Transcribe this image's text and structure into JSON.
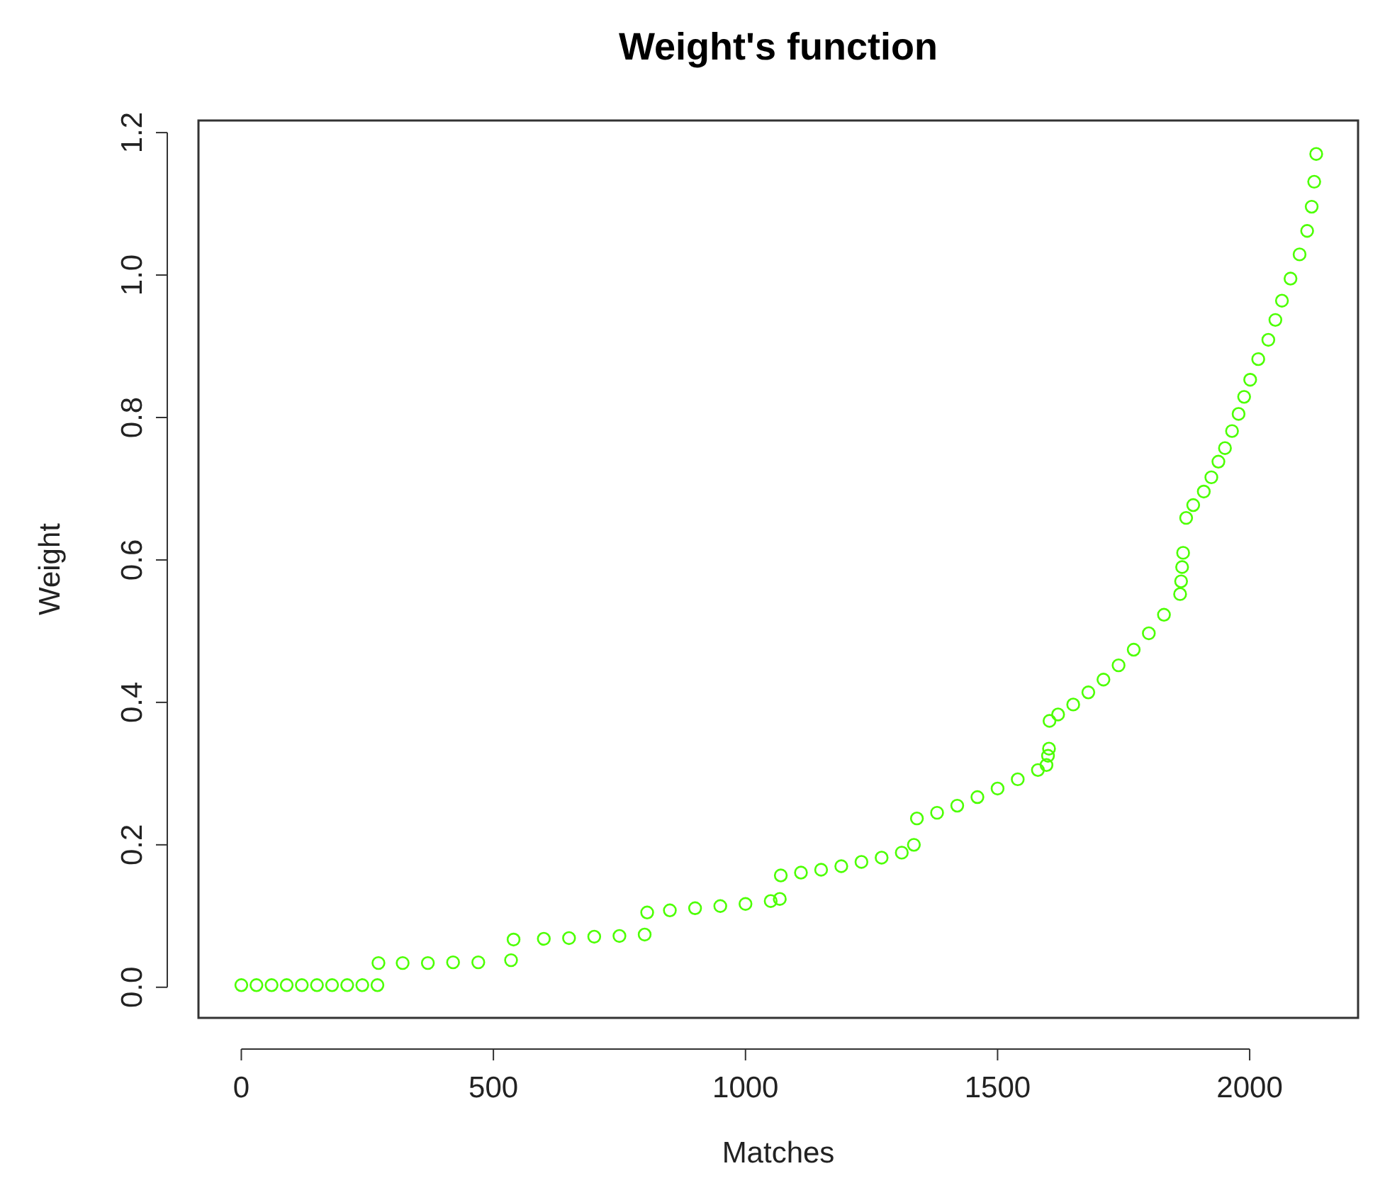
{
  "chart_data": {
    "type": "scatter",
    "title": "Weight's function",
    "xlabel": "Matches",
    "ylabel": "Weight",
    "marker": "circle",
    "grid": false,
    "xlim": [
      -85,
      2215
    ],
    "ylim": [
      -0.043,
      1.217
    ],
    "xticks": [
      0,
      500,
      1000,
      1500,
      2000
    ],
    "yticks": [
      {
        "value": 0,
        "label": "0.0"
      },
      {
        "value": 0.2,
        "label": "0.2"
      },
      {
        "value": 0.4,
        "label": "0.4"
      },
      {
        "value": 0.6,
        "label": "0.6"
      },
      {
        "value": 0.8,
        "label": "0.8"
      },
      {
        "value": 1,
        "label": "1.0"
      },
      {
        "value": 1.2,
        "label": "1.2"
      }
    ],
    "series": [
      {
        "color": "#4cff00",
        "x": [
          0,
          30,
          60,
          90,
          120,
          150,
          180,
          210,
          240,
          270,
          272,
          320,
          370,
          420,
          470,
          535,
          540,
          600,
          650,
          700,
          750,
          800,
          805,
          850,
          900,
          950,
          1000,
          1050,
          1068,
          1070,
          1110,
          1150,
          1190,
          1230,
          1270,
          1310,
          1334,
          1340,
          1380,
          1420,
          1460,
          1500,
          1540,
          1580,
          1597,
          1600,
          1602,
          1603,
          1620,
          1650,
          1680,
          1710,
          1740,
          1770,
          1800,
          1830,
          1862,
          1864,
          1866,
          1868,
          1874,
          1888,
          1909,
          1924,
          1938,
          1951,
          1965,
          1978,
          1989,
          2001,
          2017,
          2037,
          2051,
          2064,
          2081,
          2099,
          2114,
          2123,
          2128,
          2132
        ],
        "values": [
          0.003,
          0.003,
          0.003,
          0.003,
          0.003,
          0.003,
          0.003,
          0.003,
          0.003,
          0.003,
          0.034,
          0.034,
          0.034,
          0.035,
          0.035,
          0.038,
          0.067,
          0.068,
          0.069,
          0.071,
          0.072,
          0.074,
          0.105,
          0.108,
          0.111,
          0.114,
          0.117,
          0.121,
          0.124,
          0.157,
          0.161,
          0.165,
          0.17,
          0.176,
          0.182,
          0.189,
          0.2,
          0.237,
          0.245,
          0.255,
          0.267,
          0.279,
          0.292,
          0.305,
          0.312,
          0.325,
          0.335,
          0.374,
          0.383,
          0.397,
          0.414,
          0.432,
          0.452,
          0.474,
          0.497,
          0.523,
          0.552,
          0.57,
          0.59,
          0.61,
          0.659,
          0.677,
          0.696,
          0.716,
          0.738,
          0.757,
          0.781,
          0.805,
          0.829,
          0.853,
          0.882,
          0.909,
          0.937,
          0.964,
          0.995,
          1.029,
          1.062,
          1.096,
          1.131,
          1.17
        ]
      }
    ]
  }
}
